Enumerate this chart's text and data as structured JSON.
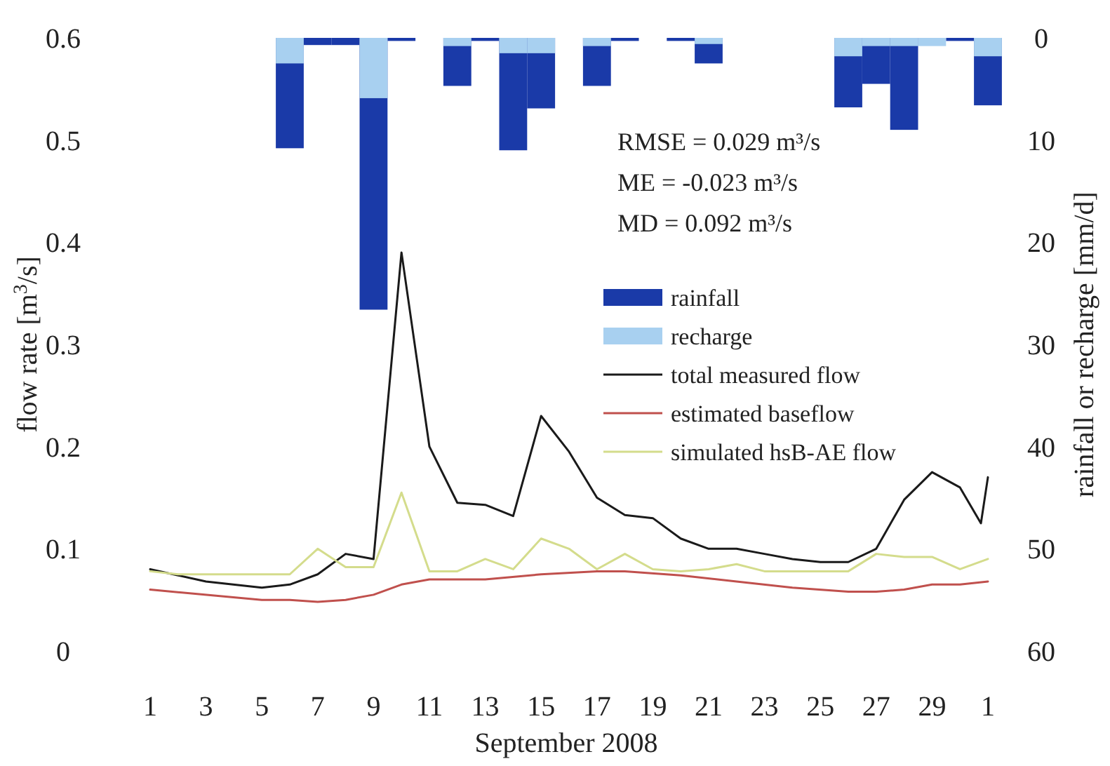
{
  "chart_data": {
    "type": "line",
    "xlabel": "September 2008",
    "ylabel": "flow rate [m$^{3}$/s]",
    "y2label": "rainfall or recharge [mm/d]",
    "xlim": [
      "2008-09-01",
      "2008-10-01"
    ],
    "xticks": [
      {
        "value": "2008-09-01",
        "label": "1"
      },
      {
        "value": "2008-09-03",
        "label": "3"
      },
      {
        "value": "2008-09-05",
        "label": "5"
      },
      {
        "value": "2008-09-07",
        "label": "7"
      },
      {
        "value": "2008-09-09",
        "label": "9"
      },
      {
        "value": "2008-09-11",
        "label": "11"
      },
      {
        "value": "2008-09-13",
        "label": "13"
      },
      {
        "value": "2008-09-15",
        "label": "15"
      },
      {
        "value": "2008-09-17",
        "label": "17"
      },
      {
        "value": "2008-09-19",
        "label": "19"
      },
      {
        "value": "2008-09-21",
        "label": "21"
      },
      {
        "value": "2008-09-23",
        "label": "23"
      },
      {
        "value": "2008-09-25",
        "label": "25"
      },
      {
        "value": "2008-09-27",
        "label": "27"
      },
      {
        "value": "2008-09-29",
        "label": "29"
      },
      {
        "value": "2008-10-01",
        "label": "1"
      }
    ],
    "ylim": [
      0,
      0.6
    ],
    "yticks": [
      0,
      0.1,
      0.2,
      0.3,
      0.4,
      0.5,
      0.6
    ],
    "y2lim": [
      60,
      0
    ],
    "y2ticks": [
      0,
      10,
      20,
      30,
      40,
      50,
      60
    ],
    "legend": "right",
    "annotations": [
      "RMSE = 0.029 m³/s",
      "ME = -0.023 m³/s",
      "MD = 0.092 m³/s"
    ],
    "series": [
      {
        "name": "rainfall",
        "type": "bar",
        "axis": "y2",
        "color": "#1a3aa8",
        "x": [
          "2008-09-06",
          "2008-09-07",
          "2008-09-08",
          "2008-09-09",
          "2008-09-10",
          "2008-09-12",
          "2008-09-13",
          "2008-09-14",
          "2008-09-15",
          "2008-09-17",
          "2008-09-18",
          "2008-09-20",
          "2008-09-21",
          "2008-09-26",
          "2008-09-27",
          "2008-09-28",
          "2008-09-30",
          "2008-10-01"
        ],
        "values": [
          10.8,
          0.7,
          0.7,
          26.6,
          0.3,
          4.7,
          0.3,
          11,
          6.9,
          4.7,
          0.3,
          0.3,
          2.5,
          6.8,
          4.5,
          9,
          0.3,
          6.6
        ]
      },
      {
        "name": "recharge",
        "type": "bar",
        "axis": "y2",
        "color": "#a8d0f0",
        "x": [
          "2008-09-06",
          "2008-09-09",
          "2008-09-12",
          "2008-09-14",
          "2008-09-15",
          "2008-09-17",
          "2008-09-21",
          "2008-09-26",
          "2008-09-27",
          "2008-09-28",
          "2008-09-29",
          "2008-10-01"
        ],
        "values": [
          2.5,
          5.9,
          0.8,
          1.5,
          1.5,
          0.8,
          0.6,
          1.8,
          0.8,
          0.8,
          0.8,
          1.8
        ]
      },
      {
        "name": "total measured flow",
        "color": "#1a1a1a",
        "x": [
          "2008-09-01",
          "2008-09-03",
          "2008-09-05",
          "2008-09-06",
          "2008-09-07",
          "2008-09-08",
          "2008-09-09",
          "2008-09-10",
          "2008-09-11",
          "2008-09-12",
          "2008-09-13",
          "2008-09-14",
          "2008-09-15",
          "2008-09-16",
          "2008-09-17",
          "2008-09-18",
          "2008-09-19",
          "2008-09-20",
          "2008-09-21",
          "2008-09-22",
          "2008-09-23",
          "2008-09-24",
          "2008-09-25",
          "2008-09-26",
          "2008-09-27",
          "2008-09-28",
          "2008-09-29",
          "2008-09-30",
          "2008-09-30T18:00",
          "2008-10-01"
        ],
        "values": [
          0.08,
          0.068,
          0.062,
          0.065,
          0.075,
          0.095,
          0.09,
          0.39,
          0.2,
          0.145,
          0.143,
          0.132,
          0.23,
          0.195,
          0.15,
          0.133,
          0.13,
          0.11,
          0.1,
          0.1,
          0.095,
          0.09,
          0.087,
          0.087,
          0.1,
          0.148,
          0.175,
          0.16,
          0.125,
          0.17
        ]
      },
      {
        "name": "estimated baseflow",
        "color": "#c0504d",
        "x": [
          "2008-09-01",
          "2008-09-05",
          "2008-09-06",
          "2008-09-07",
          "2008-09-08",
          "2008-09-09",
          "2008-09-10",
          "2008-09-11",
          "2008-09-13",
          "2008-09-15",
          "2008-09-17",
          "2008-09-18",
          "2008-09-20",
          "2008-09-22",
          "2008-09-24",
          "2008-09-26",
          "2008-09-27",
          "2008-09-28",
          "2008-09-29",
          "2008-09-30",
          "2008-10-01"
        ],
        "values": [
          0.06,
          0.05,
          0.05,
          0.048,
          0.05,
          0.055,
          0.065,
          0.07,
          0.07,
          0.075,
          0.078,
          0.078,
          0.074,
          0.068,
          0.062,
          0.058,
          0.058,
          0.06,
          0.065,
          0.065,
          0.068
        ]
      },
      {
        "name": "simulated hsB-AE flow",
        "color": "#d4dc8c",
        "x": [
          "2008-09-01",
          "2008-09-02",
          "2008-09-03",
          "2008-09-04",
          "2008-09-05",
          "2008-09-06",
          "2008-09-07",
          "2008-09-08",
          "2008-09-09",
          "2008-09-10",
          "2008-09-11",
          "2008-09-12",
          "2008-09-13",
          "2008-09-14",
          "2008-09-15",
          "2008-09-16",
          "2008-09-17",
          "2008-09-18",
          "2008-09-19",
          "2008-09-20",
          "2008-09-21",
          "2008-09-22",
          "2008-09-23",
          "2008-09-24",
          "2008-09-25",
          "2008-09-26",
          "2008-09-27",
          "2008-09-28",
          "2008-09-29",
          "2008-09-30",
          "2008-10-01"
        ],
        "values": [
          0.078,
          0.075,
          0.075,
          0.075,
          0.075,
          0.075,
          0.1,
          0.082,
          0.082,
          0.155,
          0.078,
          0.078,
          0.09,
          0.08,
          0.11,
          0.1,
          0.08,
          0.095,
          0.08,
          0.078,
          0.08,
          0.085,
          0.078,
          0.078,
          0.078,
          0.078,
          0.095,
          0.092,
          0.092,
          0.08,
          0.09
        ]
      }
    ]
  }
}
